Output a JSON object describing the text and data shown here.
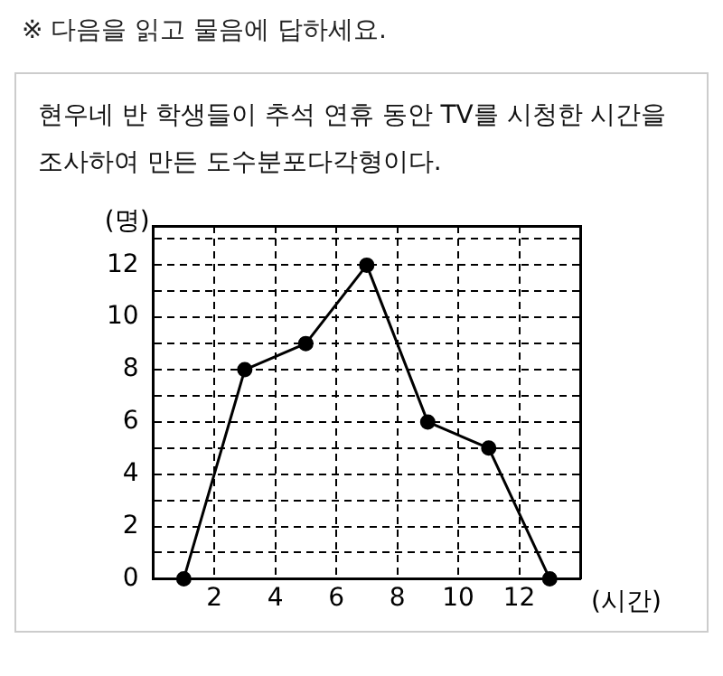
{
  "chart_data": {
    "type": "line",
    "title": "※ 다음을 읽고 물음에 답하세요.",
    "subtitle": "현우네 반 학생들이 추석 연휴 동안 TV를 시청한 시간을 조사하여 만든 도수분포다각형이다.",
    "xlabel": "(시간)",
    "ylabel": "(명)",
    "series": [
      {
        "color": "#000000",
        "x": [
          1,
          3,
          5,
          7,
          9,
          11,
          13
        ],
        "values": [
          0,
          8,
          9,
          12,
          6,
          5,
          0
        ]
      }
    ],
    "xlim": [
      0,
      14
    ],
    "xticks": [
      2,
      4,
      6,
      8,
      10,
      12
    ],
    "ylim": [
      0,
      13.5
    ],
    "yticks": [
      0,
      {
        "value": 1,
        "label": null
      },
      2,
      {
        "value": 3,
        "label": null
      },
      4,
      {
        "value": 5,
        "label": null
      },
      6,
      {
        "value": 7,
        "label": null
      },
      8,
      {
        "value": 9,
        "label": null
      },
      10,
      {
        "value": 11,
        "label": null
      },
      12,
      {
        "value": 13,
        "label": null
      }
    ],
    "grid": true,
    "marker": "circle",
    "line_style": "solid",
    "legend": false
  }
}
